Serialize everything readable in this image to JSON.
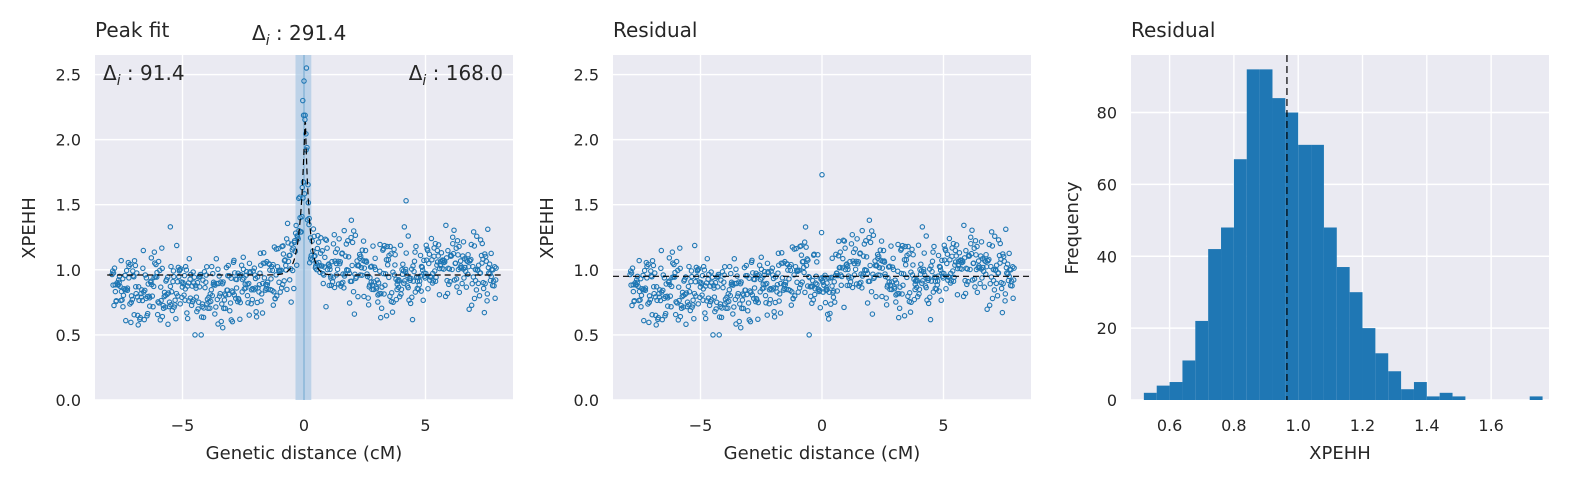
{
  "chart_data": [
    {
      "type": "scatter",
      "title": "Peak fit",
      "xlabel": "Genetic distance (cM)",
      "ylabel": "XPEHH",
      "xlim": [
        -8.6,
        8.6
      ],
      "ylim": [
        0.0,
        2.65
      ],
      "xticks": [
        -5,
        0,
        5
      ],
      "xtick_labels": [
        "−5",
        "0",
        "5"
      ],
      "yticks": [
        0.0,
        0.5,
        1.0,
        1.5,
        2.0,
        2.5
      ],
      "ytick_labels": [
        "0.0",
        "0.5",
        "1.0",
        "1.5",
        "2.0",
        "2.5"
      ],
      "grid": true,
      "annotations": {
        "left": "Δ",
        "left_sub": "i",
        "left_value": " : 91.4",
        "center": "Δ",
        "center_sub": "i",
        "center_value": " : 291.4",
        "right": "Δ",
        "right_sub": "i",
        "right_value": " : 168.0"
      },
      "baseline": 0.96,
      "peak": {
        "center": 0.05,
        "height": 2.2,
        "left_width": 0.35,
        "right_width": 0.3
      },
      "shaded_band": [
        -0.35,
        0.3
      ],
      "center_line": 0.0,
      "marker_color": "#1f77b4",
      "band_color": "#aac8e4",
      "background": "#eaeaf2"
    },
    {
      "type": "scatter",
      "title": "Residual",
      "xlabel": "Genetic distance (cM)",
      "ylabel": "XPEHH",
      "xlim": [
        -8.6,
        8.6
      ],
      "ylim": [
        0.0,
        2.65
      ],
      "xticks": [
        -5,
        0,
        5
      ],
      "xtick_labels": [
        "−5",
        "0",
        "5"
      ],
      "yticks": [
        0.0,
        0.5,
        1.0,
        1.5,
        2.0,
        2.5
      ],
      "ytick_labels": [
        "0.0",
        "0.5",
        "1.0",
        "1.5",
        "2.0",
        "2.5"
      ],
      "grid": true,
      "baseline": 0.95,
      "marker_color": "#1f77b4",
      "background": "#eaeaf2"
    },
    {
      "type": "bar",
      "title": "Residual",
      "xlabel": "XPEHH",
      "ylabel": "Frequency",
      "xlim": [
        0.48,
        1.78
      ],
      "ylim": [
        0,
        96
      ],
      "xticks": [
        0.6,
        0.8,
        1.0,
        1.2,
        1.4,
        1.6
      ],
      "xtick_labels": [
        "0.6",
        "0.8",
        "1.0",
        "1.2",
        "1.4",
        "1.6"
      ],
      "yticks": [
        0,
        20,
        40,
        60,
        80
      ],
      "ytick_labels": [
        "0",
        "20",
        "40",
        "60",
        "80"
      ],
      "grid": true,
      "bin_edges": [
        0.52,
        0.56,
        0.6,
        0.64,
        0.68,
        0.72,
        0.76,
        0.8,
        0.84,
        0.88,
        0.92,
        0.96,
        1.0,
        1.04,
        1.08,
        1.12,
        1.16,
        1.2,
        1.24,
        1.28,
        1.32,
        1.36,
        1.4,
        1.44,
        1.48,
        1.52,
        1.56,
        1.6,
        1.64,
        1.68,
        1.72,
        1.76
      ],
      "counts": [
        2,
        4,
        5,
        11,
        22,
        42,
        48,
        67,
        92,
        92,
        84,
        80,
        71,
        71,
        48,
        37,
        30,
        20,
        13,
        8,
        3,
        5,
        1,
        2,
        1,
        0,
        0,
        0,
        0,
        0,
        1
      ],
      "mean_line": 0.965,
      "bar_color": "#1f77b4",
      "background": "#eaeaf2"
    }
  ]
}
